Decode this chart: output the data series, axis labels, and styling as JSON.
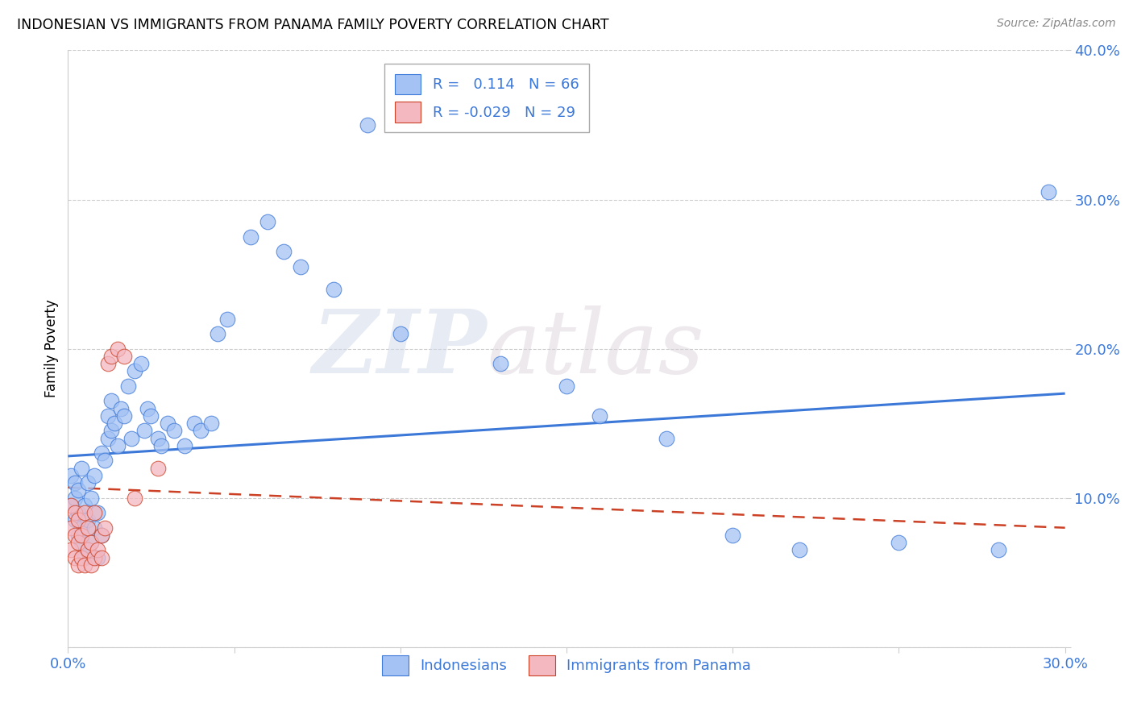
{
  "title": "INDONESIAN VS IMMIGRANTS FROM PANAMA FAMILY POVERTY CORRELATION CHART",
  "source": "Source: ZipAtlas.com",
  "ylabel": "Family Poverty",
  "xlim": [
    0.0,
    0.3
  ],
  "ylim": [
    0.0,
    0.4
  ],
  "r_indonesian": 0.114,
  "n_indonesian": 66,
  "r_panama": -0.029,
  "n_panama": 29,
  "blue_color": "#a4c2f4",
  "pink_color": "#f4b8c1",
  "trend_blue": "#3c78d8",
  "trend_pink": "#cc4125",
  "indonesian_x": [
    0.001,
    0.001,
    0.002,
    0.002,
    0.002,
    0.003,
    0.003,
    0.003,
    0.004,
    0.004,
    0.004,
    0.005,
    0.005,
    0.006,
    0.006,
    0.006,
    0.007,
    0.007,
    0.008,
    0.008,
    0.009,
    0.009,
    0.01,
    0.01,
    0.011,
    0.012,
    0.012,
    0.013,
    0.013,
    0.014,
    0.015,
    0.016,
    0.017,
    0.018,
    0.019,
    0.02,
    0.022,
    0.023,
    0.024,
    0.025,
    0.027,
    0.028,
    0.03,
    0.032,
    0.035,
    0.038,
    0.04,
    0.043,
    0.045,
    0.048,
    0.055,
    0.06,
    0.065,
    0.07,
    0.08,
    0.09,
    0.1,
    0.13,
    0.15,
    0.16,
    0.18,
    0.2,
    0.22,
    0.25,
    0.28,
    0.295
  ],
  "indonesian_y": [
    0.095,
    0.115,
    0.085,
    0.1,
    0.11,
    0.075,
    0.09,
    0.105,
    0.07,
    0.08,
    0.12,
    0.06,
    0.095,
    0.065,
    0.085,
    0.11,
    0.07,
    0.1,
    0.08,
    0.115,
    0.06,
    0.09,
    0.075,
    0.13,
    0.125,
    0.14,
    0.155,
    0.145,
    0.165,
    0.15,
    0.135,
    0.16,
    0.155,
    0.175,
    0.14,
    0.185,
    0.19,
    0.145,
    0.16,
    0.155,
    0.14,
    0.135,
    0.15,
    0.145,
    0.135,
    0.15,
    0.145,
    0.15,
    0.21,
    0.22,
    0.275,
    0.285,
    0.265,
    0.255,
    0.24,
    0.35,
    0.21,
    0.19,
    0.175,
    0.155,
    0.14,
    0.075,
    0.065,
    0.07,
    0.065,
    0.305
  ],
  "panama_x": [
    0.001,
    0.001,
    0.001,
    0.002,
    0.002,
    0.002,
    0.003,
    0.003,
    0.003,
    0.004,
    0.004,
    0.005,
    0.005,
    0.006,
    0.006,
    0.007,
    0.007,
    0.008,
    0.008,
    0.009,
    0.01,
    0.01,
    0.011,
    0.012,
    0.013,
    0.015,
    0.017,
    0.02,
    0.027
  ],
  "panama_y": [
    0.065,
    0.08,
    0.095,
    0.06,
    0.075,
    0.09,
    0.055,
    0.07,
    0.085,
    0.06,
    0.075,
    0.055,
    0.09,
    0.065,
    0.08,
    0.055,
    0.07,
    0.06,
    0.09,
    0.065,
    0.06,
    0.075,
    0.08,
    0.19,
    0.195,
    0.2,
    0.195,
    0.1,
    0.12
  ],
  "watermark_zip": "ZIP",
  "watermark_atlas": "atlas",
  "legend_label_1": "Indonesians",
  "legend_label_2": "Immigrants from Panama"
}
